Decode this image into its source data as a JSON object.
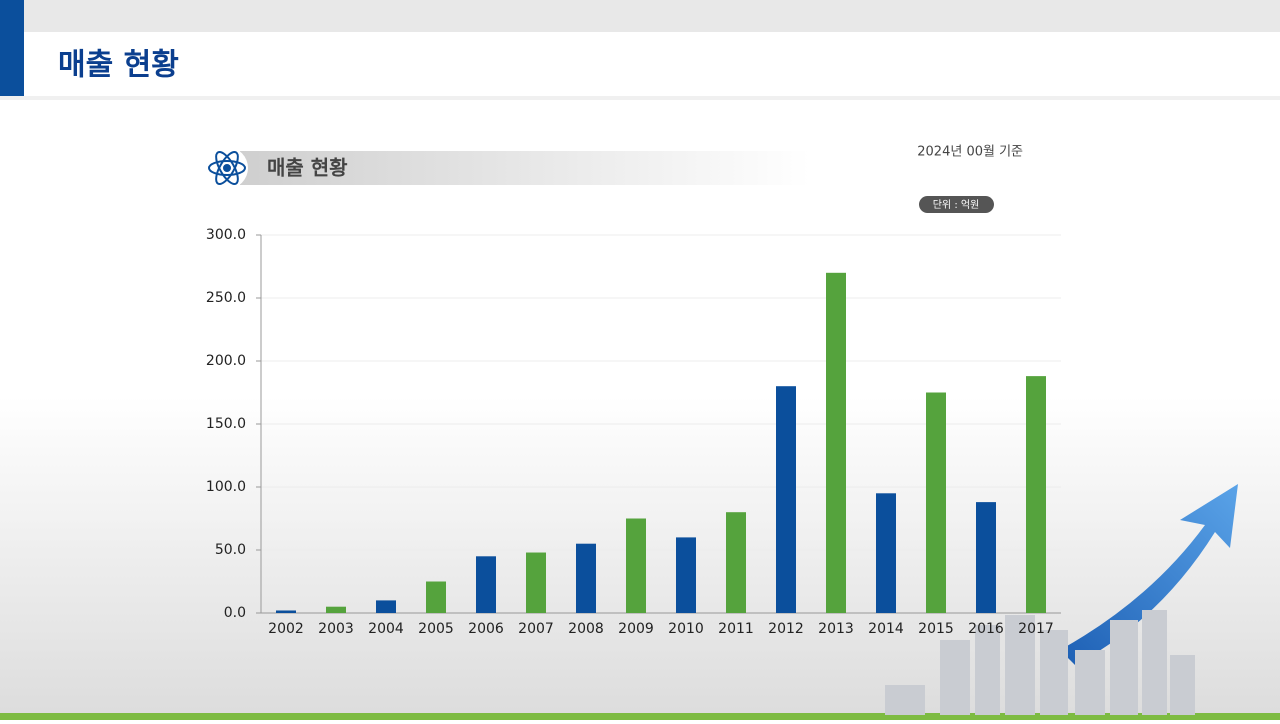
{
  "header": {
    "title": "매출 현황"
  },
  "chart_data": {
    "type": "bar",
    "title": "매출 현황",
    "note": "2024년 00월 기준",
    "unit": "단위 : 억원",
    "categories": [
      "2002",
      "2003",
      "2004",
      "2005",
      "2006",
      "2007",
      "2008",
      "2009",
      "2010",
      "2011",
      "2012",
      "2013",
      "2014",
      "2015",
      "2016",
      "2017"
    ],
    "values": [
      2,
      5,
      10,
      25,
      45,
      48,
      55,
      75,
      60,
      80,
      180,
      270,
      95,
      175,
      88,
      188
    ],
    "colors": [
      "#0b4f9c",
      "#55a33d",
      "#0b4f9c",
      "#55a33d",
      "#0b4f9c",
      "#55a33d",
      "#0b4f9c",
      "#55a33d",
      "#0b4f9c",
      "#55a33d",
      "#0b4f9c",
      "#55a33d",
      "#0b4f9c",
      "#55a33d",
      "#0b4f9c",
      "#55a33d"
    ],
    "ylim": [
      0,
      300
    ],
    "yticks": [
      {
        "value": 0,
        "label": "0.0"
      },
      {
        "value": 50,
        "label": "50.0"
      },
      {
        "value": 100,
        "label": "100.0"
      },
      {
        "value": 150,
        "label": "150.0"
      },
      {
        "value": 200,
        "label": "200.0"
      },
      {
        "value": 250,
        "label": "250.0"
      },
      {
        "value": 300,
        "label": "300.0"
      }
    ],
    "grid": true
  }
}
